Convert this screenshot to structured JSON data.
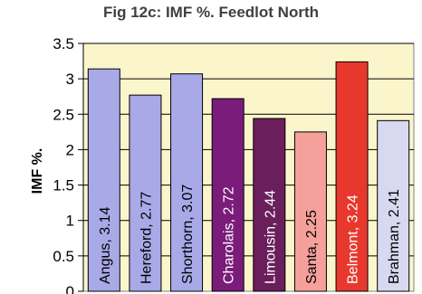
{
  "chart_data": {
    "type": "bar",
    "title": "Fig 12c:  IMF %. Feedlot North",
    "ylabel": "IMF %.",
    "xlabel": "",
    "ylim": [
      0,
      3.5
    ],
    "ytick_labels": [
      "0",
      "0.5",
      "1",
      "1.5",
      "2",
      "2.5",
      "3",
      "3.5"
    ],
    "grid": true,
    "categories": [
      "Angus",
      "Hereford",
      "Shorthorn",
      "Charolais",
      "Limousin",
      "Santa",
      "Belmont",
      "Brahman"
    ],
    "values": [
      3.14,
      2.77,
      3.07,
      2.72,
      2.44,
      2.25,
      3.24,
      2.41
    ],
    "bar_labels": [
      "Angus, 3.14",
      "Hereford, 2.77",
      "Shorthorn, 3.07",
      "Charolais, 2.72",
      "Limousin, 2.44",
      "Santa, 2.25",
      "Belmont, 3.24",
      "Brahman, 2.41"
    ],
    "colors": [
      "#a9a9e8",
      "#a9a9e8",
      "#a9a9e8",
      "#7a1c7a",
      "#6a1f5c",
      "#f5a09a",
      "#e8382e",
      "#d8d8f0"
    ],
    "label_colors": [
      "#000000",
      "#000000",
      "#000000",
      "#ffffff",
      "#ffffff",
      "#000000",
      "#ffffff",
      "#000000"
    ],
    "plot_background": "#fbf5cc"
  }
}
